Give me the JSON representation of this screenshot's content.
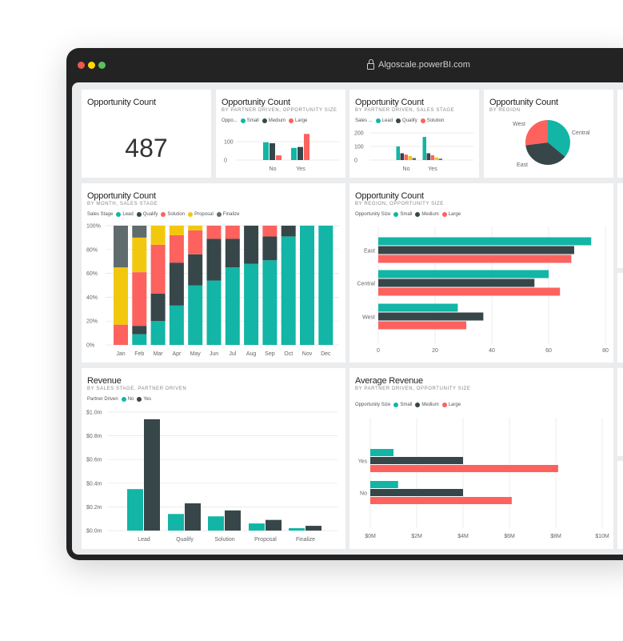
{
  "browser": {
    "url": "Algoscale.powerBI.com",
    "dots": [
      "#ed594a",
      "#fdd800",
      "#5ac05a"
    ]
  },
  "colors": {
    "lead": "#12b5a6",
    "qualify": "#374649",
    "solution": "#fd625e",
    "proposal": "#f2c80f",
    "finalize": "#5f6b6d"
  },
  "cards": {
    "count": {
      "title": "Opportunity Count",
      "value": "487"
    },
    "by_partner_size": {
      "title": "Opportunity Count",
      "subtitle": "BY PARTNER DRIVEN, OPPORTUNITY SIZE",
      "legend_title": "Oppo...",
      "legend": [
        "Small",
        "Medium",
        "Large"
      ]
    },
    "by_partner_stage": {
      "title": "Opportunity Count",
      "subtitle": "BY PARTNER DRIVEN, SALES STAGE",
      "legend_title": "Sales ...",
      "legend": [
        "Lead",
        "Qualify",
        "Solution"
      ]
    },
    "by_region": {
      "title": "Opportunity Count",
      "subtitle": "BY REGION"
    },
    "by_month": {
      "title": "Opportunity Count",
      "subtitle": "BY MONTH, SALES STAGE",
      "legend_title": "Sales Stage",
      "legend": [
        "Lead",
        "Qualify",
        "Solution",
        "Proposal",
        "Finalize"
      ]
    },
    "by_region_size": {
      "title": "Opportunity Count",
      "subtitle": "BY REGION, OPPORTUNITY SIZE",
      "legend_title": "Opportunity Size",
      "legend": [
        "Small",
        "Medium",
        "Large"
      ]
    },
    "revenue": {
      "title": "Revenue",
      "subtitle": "BY SALES STAGE, PARTNER DRIVEN",
      "legend_title": "Partner Driven",
      "legend": [
        "No",
        "Yes"
      ]
    },
    "avg_revenue": {
      "title": "Average Revenue",
      "subtitle": "BY PARTNER DRIVEN, OPPORTUNITY SIZE",
      "legend_title": "Opportunity Size",
      "legend": [
        "Small",
        "Medium",
        "Large"
      ]
    }
  },
  "chart_data": [
    {
      "id": "by_partner_size",
      "type": "bar",
      "categories": [
        "No",
        "Yes"
      ],
      "yticks": [
        "0",
        "100"
      ],
      "ylim": [
        0,
        150
      ],
      "series": [
        {
          "name": "Small",
          "values": [
            95,
            65
          ]
        },
        {
          "name": "Medium",
          "values": [
            90,
            70
          ]
        },
        {
          "name": "Large",
          "values": [
            25,
            140
          ]
        }
      ]
    },
    {
      "id": "by_partner_stage",
      "type": "bar",
      "categories": [
        "No",
        "Yes"
      ],
      "yticks": [
        "0",
        "100",
        "200"
      ],
      "ylim": [
        0,
        200
      ],
      "series": [
        {
          "name": "Lead",
          "values": [
            100,
            170
          ]
        },
        {
          "name": "Qualify",
          "values": [
            50,
            50
          ]
        },
        {
          "name": "Solution",
          "values": [
            40,
            35
          ]
        },
        {
          "name": "Proposal",
          "values": [
            30,
            20
          ]
        },
        {
          "name": "Finalize",
          "values": [
            15,
            10
          ]
        }
      ]
    },
    {
      "id": "by_region",
      "type": "pie",
      "labels": [
        "Central",
        "East",
        "West"
      ],
      "values": [
        36,
        37,
        27
      ]
    },
    {
      "id": "by_month",
      "type": "bar",
      "stacked": "100%",
      "categories": [
        "Jan",
        "Feb",
        "Mar",
        "Apr",
        "May",
        "Jun",
        "Jul",
        "Aug",
        "Sep",
        "Oct",
        "Nov",
        "Dec"
      ],
      "yticks": [
        "0%",
        "20%",
        "40%",
        "60%",
        "80%",
        "100%"
      ],
      "ylim": [
        0,
        100
      ],
      "series": [
        {
          "name": "Lead",
          "values": [
            0,
            9,
            20,
            33,
            50,
            54,
            65,
            68,
            71,
            91,
            100,
            100
          ]
        },
        {
          "name": "Qualify",
          "values": [
            0,
            7,
            23,
            36,
            26,
            35,
            24,
            32,
            20,
            9,
            0,
            0
          ]
        },
        {
          "name": "Solution",
          "values": [
            17,
            45,
            41,
            23,
            20,
            11,
            11,
            0,
            9,
            0,
            0,
            0
          ]
        },
        {
          "name": "Proposal",
          "values": [
            48,
            29,
            16,
            8,
            4,
            0,
            0,
            0,
            0,
            0,
            0,
            0
          ]
        },
        {
          "name": "Finalize",
          "values": [
            35,
            10,
            0,
            0,
            0,
            0,
            0,
            0,
            0,
            0,
            0,
            0
          ]
        }
      ]
    },
    {
      "id": "by_region_size",
      "type": "bar",
      "orientation": "horizontal",
      "categories": [
        "East",
        "Central",
        "West"
      ],
      "xticks": [
        "0",
        "20",
        "40",
        "60",
        "80"
      ],
      "xlim": [
        0,
        80
      ],
      "series": [
        {
          "name": "Small",
          "values": [
            75,
            60,
            28
          ]
        },
        {
          "name": "Medium",
          "values": [
            69,
            55,
            37
          ]
        },
        {
          "name": "Large",
          "values": [
            68,
            64,
            31
          ]
        }
      ]
    },
    {
      "id": "revenue",
      "type": "bar",
      "categories": [
        "Lead",
        "Qualify",
        "Solution",
        "Proposal",
        "Finalize"
      ],
      "yticks": [
        "$0.0m",
        "$0.2m",
        "$0.4m",
        "$0.6m",
        "$0.8m",
        "$1.0m"
      ],
      "ylim": [
        0,
        1.0
      ],
      "series": [
        {
          "name": "No",
          "values": [
            0.35,
            0.14,
            0.12,
            0.06,
            0.02
          ]
        },
        {
          "name": "Yes",
          "values": [
            0.94,
            0.23,
            0.17,
            0.09,
            0.04
          ]
        }
      ]
    },
    {
      "id": "avg_revenue",
      "type": "bar",
      "orientation": "horizontal",
      "categories": [
        "Yes",
        "No"
      ],
      "xticks": [
        "$0M",
        "$2M",
        "$4M",
        "$6M",
        "$8M",
        "$10M"
      ],
      "xlim": [
        0,
        10
      ],
      "series": [
        {
          "name": "Small",
          "values": [
            1.0,
            1.2
          ]
        },
        {
          "name": "Medium",
          "values": [
            4.0,
            4.0
          ]
        },
        {
          "name": "Large",
          "values": [
            8.1,
            6.1
          ]
        }
      ]
    }
  ]
}
